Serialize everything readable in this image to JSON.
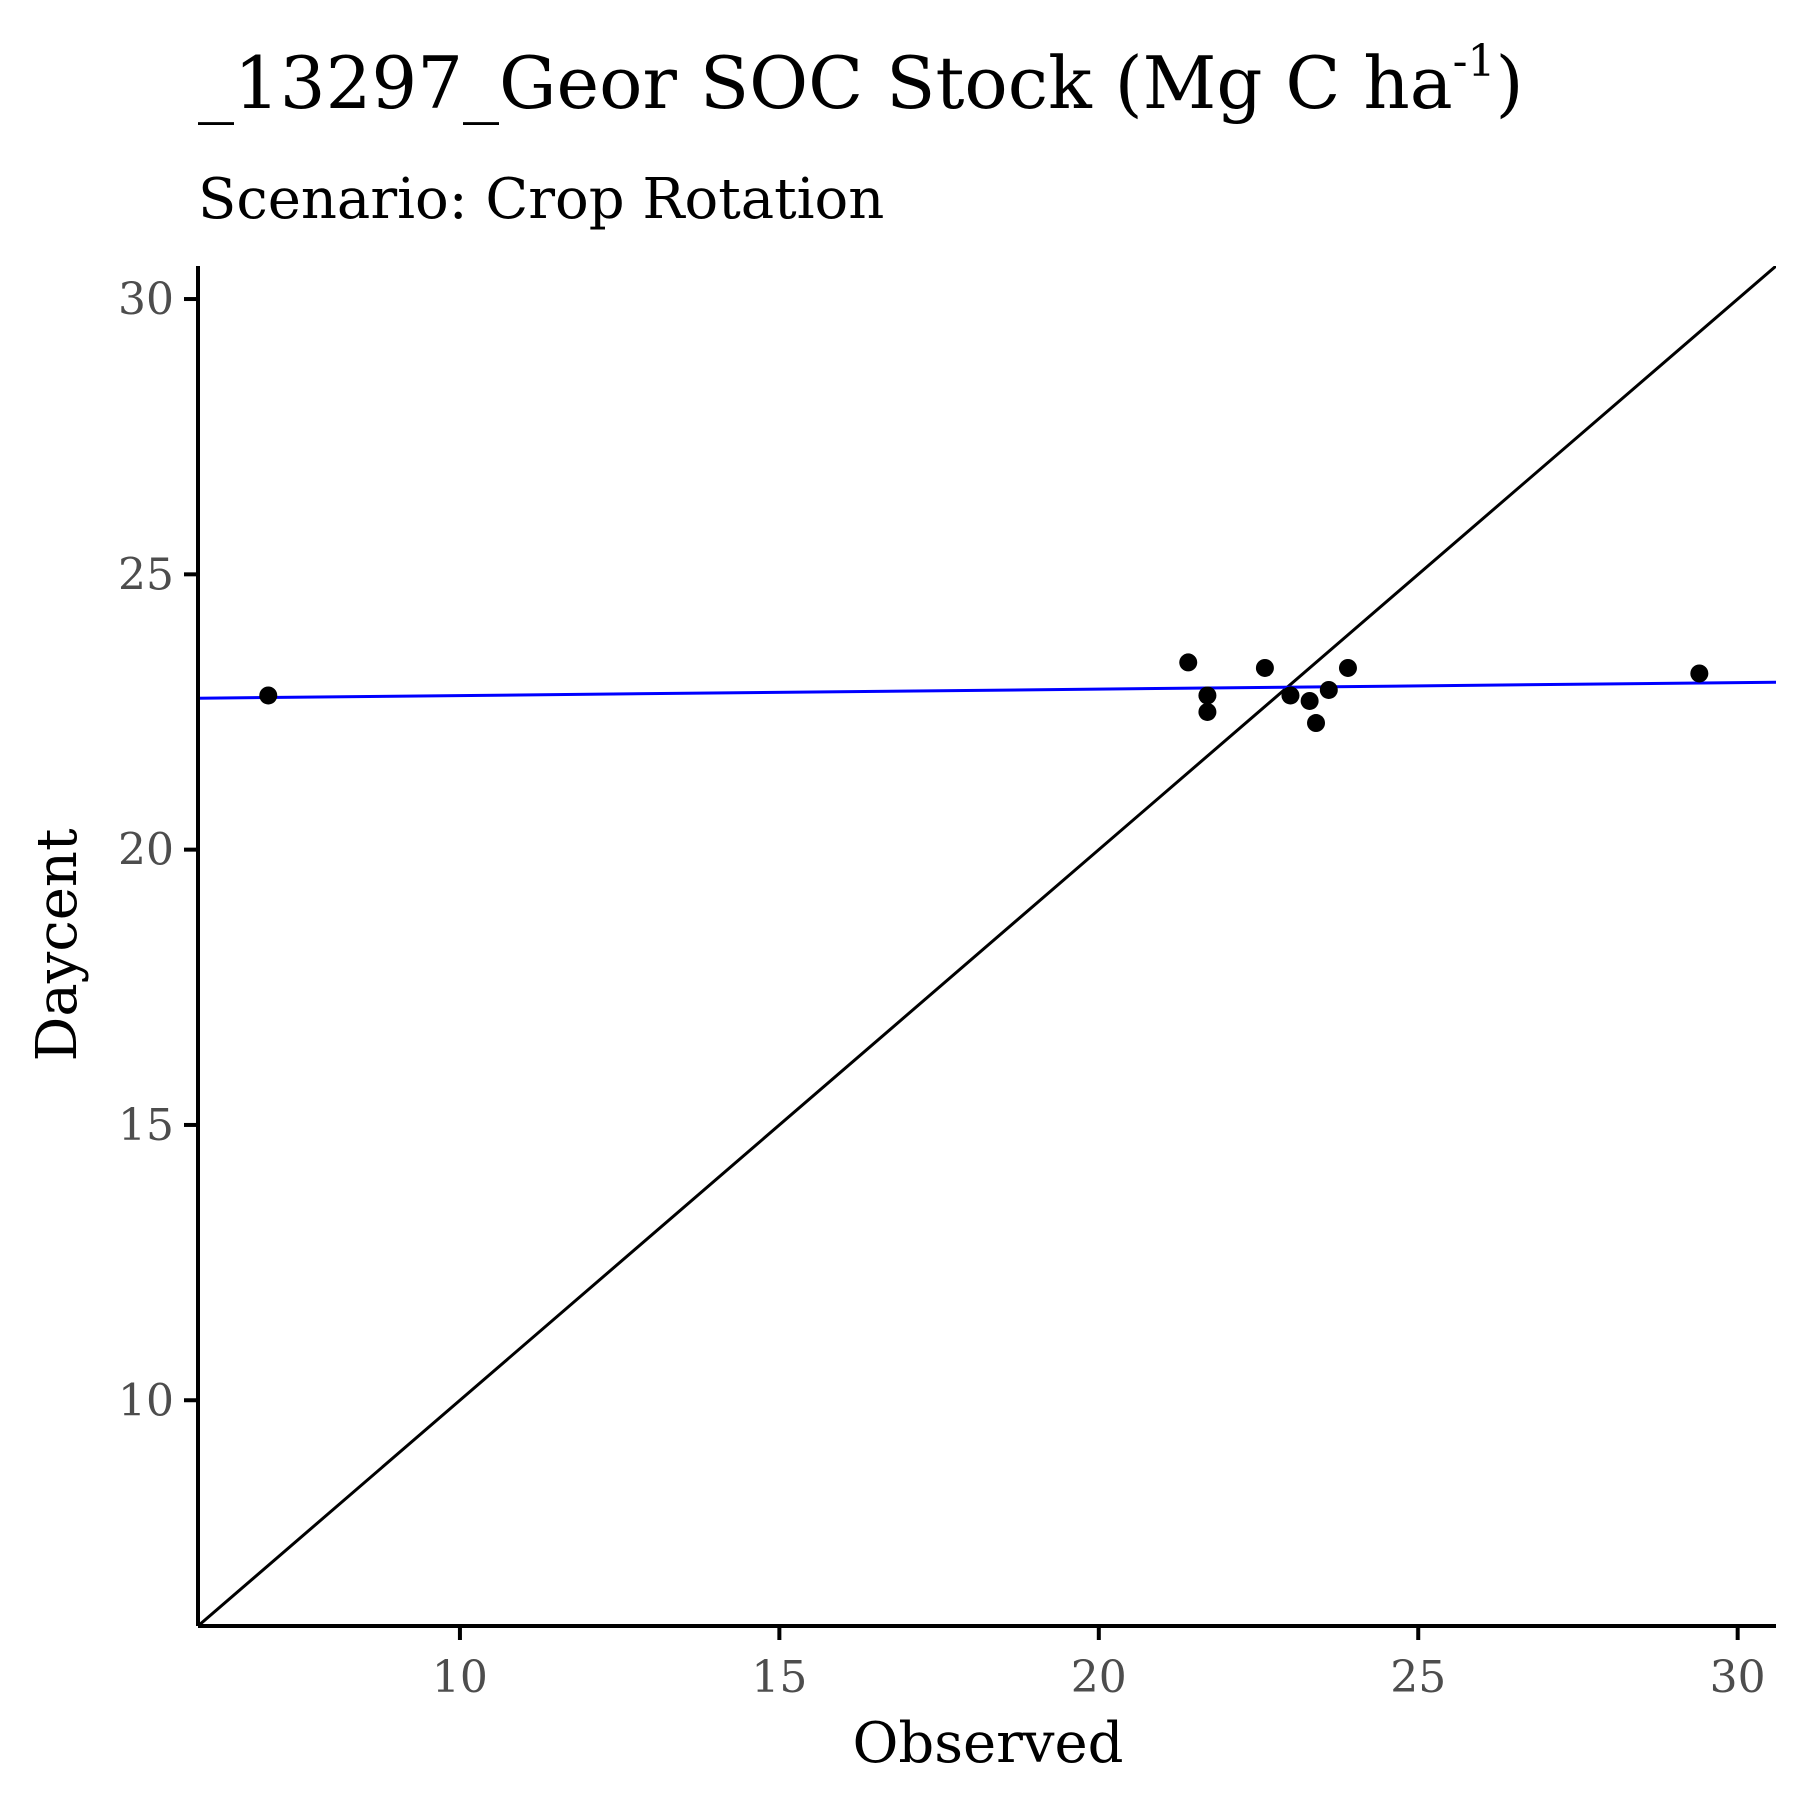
{
  "chart_data": {
    "type": "scatter",
    "title": {
      "main": "_13297_Geor SOC Stock (Mg C ha",
      "superscript": "-1",
      "close": ")"
    },
    "subtitle": "Scenario: Crop Rotation",
    "xlabel": "Observed",
    "ylabel": "Daycent",
    "xlim": [
      5.9,
      30.6
    ],
    "ylim": [
      5.9,
      30.6
    ],
    "x_ticks": [
      10,
      15,
      20,
      25,
      30
    ],
    "y_ticks": [
      10,
      15,
      20,
      25,
      30
    ],
    "x_tick_labels": [
      "10",
      "15",
      "20",
      "25",
      "30"
    ],
    "y_tick_labels": [
      "10",
      "15",
      "20",
      "25",
      "30"
    ],
    "grid": false,
    "points": [
      {
        "x": 7.0,
        "y": 22.8
      },
      {
        "x": 21.4,
        "y": 23.4
      },
      {
        "x": 21.7,
        "y": 22.8
      },
      {
        "x": 21.7,
        "y": 22.5
      },
      {
        "x": 22.6,
        "y": 23.3
      },
      {
        "x": 23.0,
        "y": 22.8
      },
      {
        "x": 23.3,
        "y": 22.7
      },
      {
        "x": 23.4,
        "y": 22.3
      },
      {
        "x": 23.6,
        "y": 22.9
      },
      {
        "x": 23.9,
        "y": 23.3
      },
      {
        "x": 29.4,
        "y": 23.2
      }
    ],
    "identity_line": {
      "x1": 5.9,
      "y1": 5.9,
      "x2": 30.6,
      "y2": 30.6,
      "color": "#000000"
    },
    "regression_line": {
      "x1": 5.9,
      "y1": 22.75,
      "x2": 30.6,
      "y2": 23.04,
      "color": "#0000ff"
    },
    "point_color": "#000000",
    "axis_color": "#000000"
  }
}
